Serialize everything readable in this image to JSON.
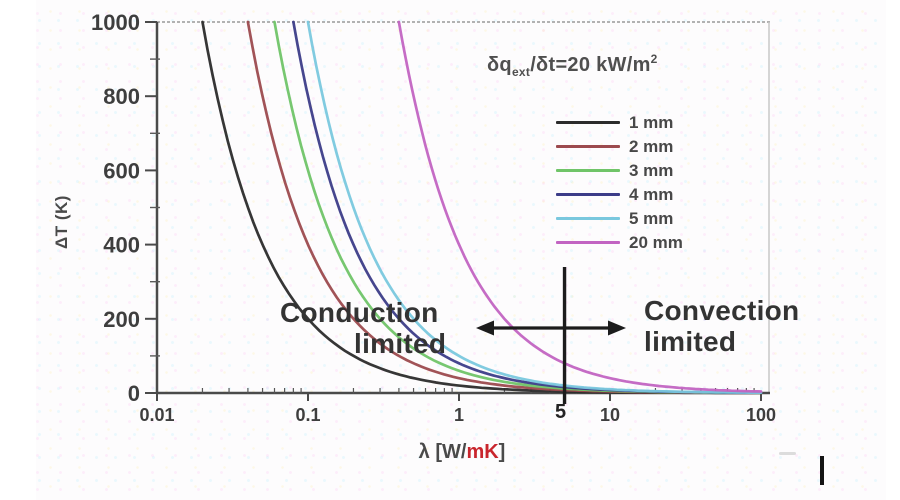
{
  "chart_data": {
    "type": "line",
    "xscale": "log",
    "xlim": [
      0.01,
      100
    ],
    "ylim": [
      0,
      1000
    ],
    "grid": false,
    "legend_position": "upper right",
    "ylabel": "ΔT (K)",
    "xlabel_parts": {
      "prefix": "λ [W/",
      "highlight": "mK",
      "suffix": "]"
    },
    "xlabel_highlight_color": "#c9252d",
    "heat_flux_kW_per_m2": 20,
    "heat_flux_label": {
      "prefix": "δq",
      "sub": "ext",
      "mid": "/δt=20 kW/m",
      "sup": "2"
    },
    "x_major_ticks": [
      {
        "value": 0.01,
        "label": "0.01"
      },
      {
        "value": 0.1,
        "label": "0.1"
      },
      {
        "value": 1,
        "label": "1"
      },
      {
        "value": 10,
        "label": "10"
      },
      {
        "value": 100,
        "label": "100"
      }
    ],
    "x_special_tick": {
      "value": 5,
      "label": "5"
    },
    "x_minor_multipliers": [
      2,
      3,
      4,
      5,
      6,
      7,
      8,
      9
    ],
    "y_major_ticks": [
      {
        "value": 0,
        "label": "0"
      },
      {
        "value": 200,
        "label": "200"
      },
      {
        "value": 400,
        "label": "400"
      },
      {
        "value": 600,
        "label": "600"
      },
      {
        "value": 800,
        "label": "800"
      },
      {
        "value": 1000,
        "label": "1000"
      }
    ],
    "y_minor_ticks": [
      100,
      300,
      500,
      700,
      900
    ],
    "series": [
      {
        "name": "1 mm",
        "thickness_mm": 1,
        "color": "#2b2b2b",
        "points": [
          [
            0.02,
            1000
          ],
          [
            0.05,
            400
          ],
          [
            0.1,
            200
          ],
          [
            0.2,
            100
          ],
          [
            0.5,
            40
          ],
          [
            1,
            20
          ],
          [
            2,
            10
          ],
          [
            5,
            4
          ],
          [
            10,
            2
          ],
          [
            50,
            0.4
          ],
          [
            100,
            0.2
          ]
        ]
      },
      {
        "name": "2 mm",
        "thickness_mm": 2,
        "color": "#9c4a4e",
        "points": [
          [
            0.04,
            1000
          ],
          [
            0.1,
            400
          ],
          [
            0.2,
            200
          ],
          [
            0.5,
            80
          ],
          [
            1,
            40
          ],
          [
            2,
            20
          ],
          [
            5,
            8
          ],
          [
            10,
            4
          ],
          [
            50,
            0.8
          ],
          [
            100,
            0.4
          ]
        ]
      },
      {
        "name": "3 mm",
        "thickness_mm": 3,
        "color": "#70c468",
        "points": [
          [
            0.06,
            1000
          ],
          [
            0.1,
            600
          ],
          [
            0.2,
            300
          ],
          [
            0.5,
            120
          ],
          [
            1,
            60
          ],
          [
            2,
            30
          ],
          [
            5,
            12
          ],
          [
            10,
            6
          ],
          [
            50,
            1.2
          ],
          [
            100,
            0.6
          ]
        ]
      },
      {
        "name": "4 mm",
        "thickness_mm": 4,
        "color": "#3c3c88",
        "points": [
          [
            0.08,
            1000
          ],
          [
            0.2,
            400
          ],
          [
            0.5,
            160
          ],
          [
            1,
            80
          ],
          [
            2,
            40
          ],
          [
            5,
            16
          ],
          [
            10,
            8
          ],
          [
            50,
            1.6
          ],
          [
            100,
            0.8
          ]
        ]
      },
      {
        "name": "5 mm",
        "thickness_mm": 5,
        "color": "#7ac8de",
        "points": [
          [
            0.1,
            1000
          ],
          [
            0.2,
            500
          ],
          [
            0.5,
            200
          ],
          [
            1,
            100
          ],
          [
            2,
            50
          ],
          [
            5,
            20
          ],
          [
            10,
            10
          ],
          [
            50,
            2
          ],
          [
            100,
            1
          ]
        ]
      },
      {
        "name": "20 mm",
        "thickness_mm": 20,
        "color": "#c264c2",
        "points": [
          [
            0.4,
            1000
          ],
          [
            1,
            400
          ],
          [
            2,
            200
          ],
          [
            5,
            80
          ],
          [
            10,
            40
          ],
          [
            20,
            20
          ],
          [
            50,
            8
          ],
          [
            100,
            4
          ]
        ]
      }
    ],
    "annotations": {
      "conduction": {
        "line1": "Conduction",
        "line2": "limited"
      },
      "convection": {
        "line1": "Convection",
        "line2": "limited"
      },
      "regime_divider_lambda": 5
    }
  }
}
